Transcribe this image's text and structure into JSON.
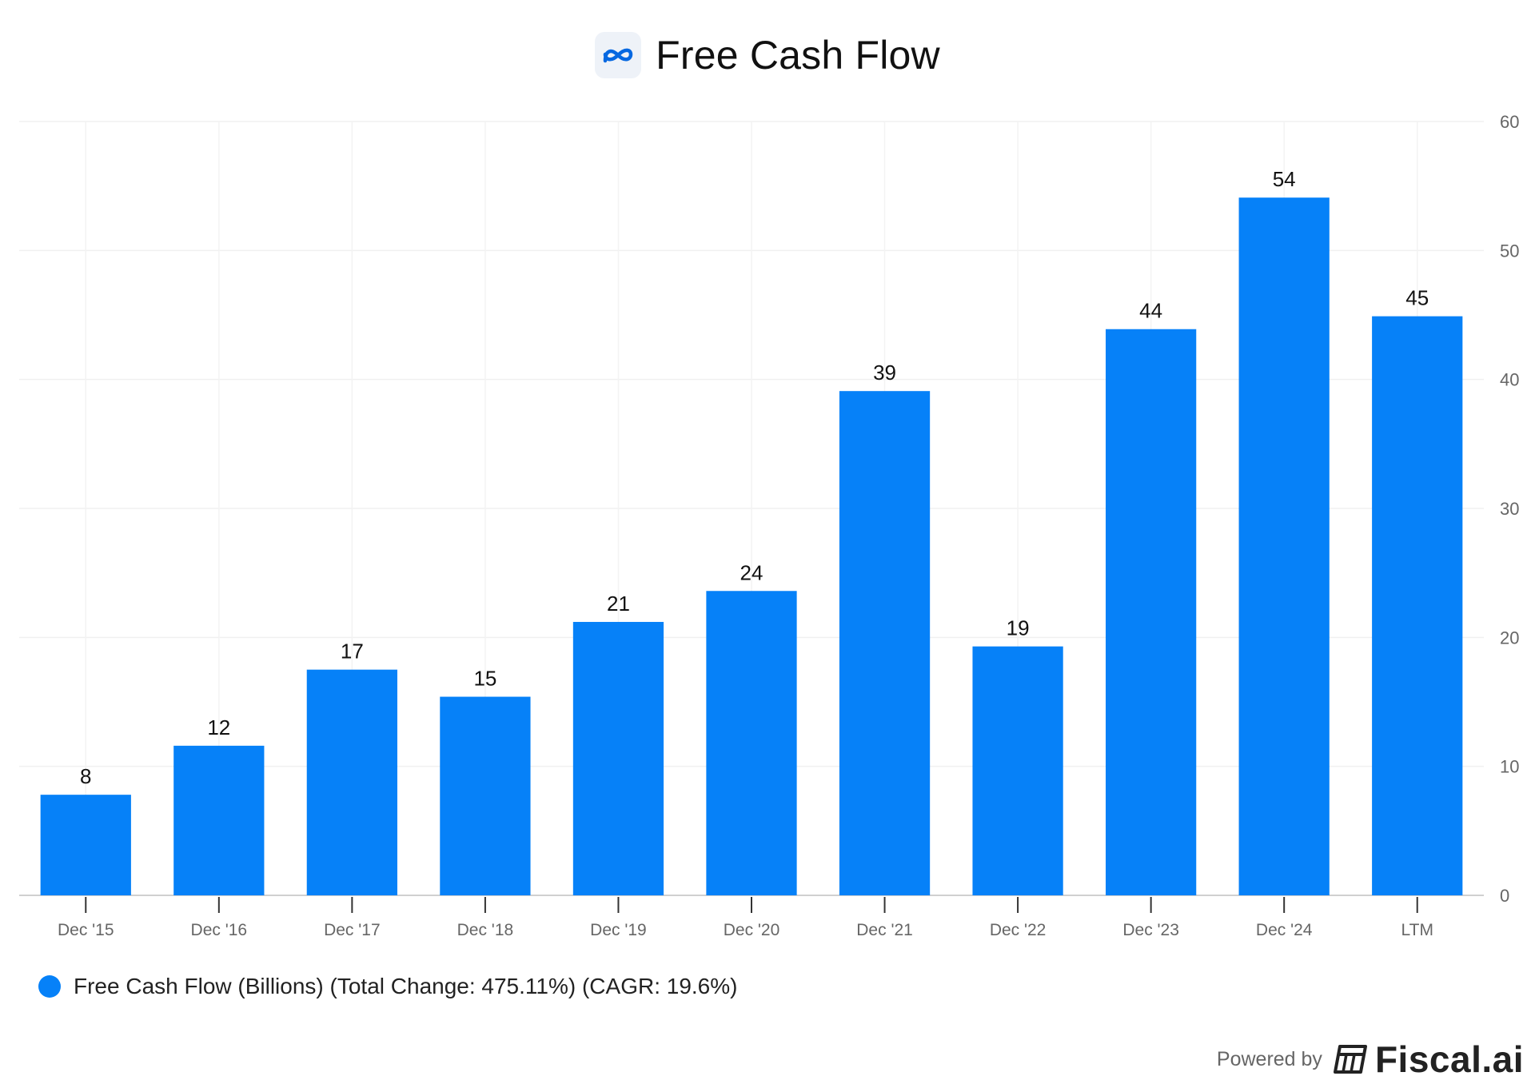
{
  "header": {
    "title": "Free Cash Flow",
    "logo_icon": "meta-logo-icon"
  },
  "legend": {
    "label": "Free Cash Flow (Billions) (Total Change: 475.11%) (CAGR: 19.6%)",
    "color": "#0681f8"
  },
  "footer": {
    "powered_by": "Powered by",
    "brand": "Fiscal.ai",
    "brand_icon": "fiscal-logo-icon"
  },
  "chart_data": {
    "type": "bar",
    "categories": [
      "Dec '15",
      "Dec '16",
      "Dec '17",
      "Dec '18",
      "Dec '19",
      "Dec '20",
      "Dec '21",
      "Dec '22",
      "Dec '23",
      "Dec '24",
      "LTM"
    ],
    "series": [
      {
        "name": "Free Cash Flow (Billions)",
        "values": [
          7.8,
          11.6,
          17.5,
          15.4,
          21.2,
          23.6,
          39.1,
          19.3,
          43.9,
          54.1,
          44.9
        ],
        "labels": [
          "8",
          "12",
          "17",
          "15",
          "21",
          "24",
          "39",
          "19",
          "44",
          "54",
          "45"
        ],
        "color": "#0681f8"
      }
    ],
    "ylim": [
      0,
      60
    ],
    "yticks": [
      0,
      10,
      20,
      30,
      40,
      50,
      60
    ],
    "y_axis_side": "right",
    "grid": true,
    "legend_position": "bottom-left"
  }
}
